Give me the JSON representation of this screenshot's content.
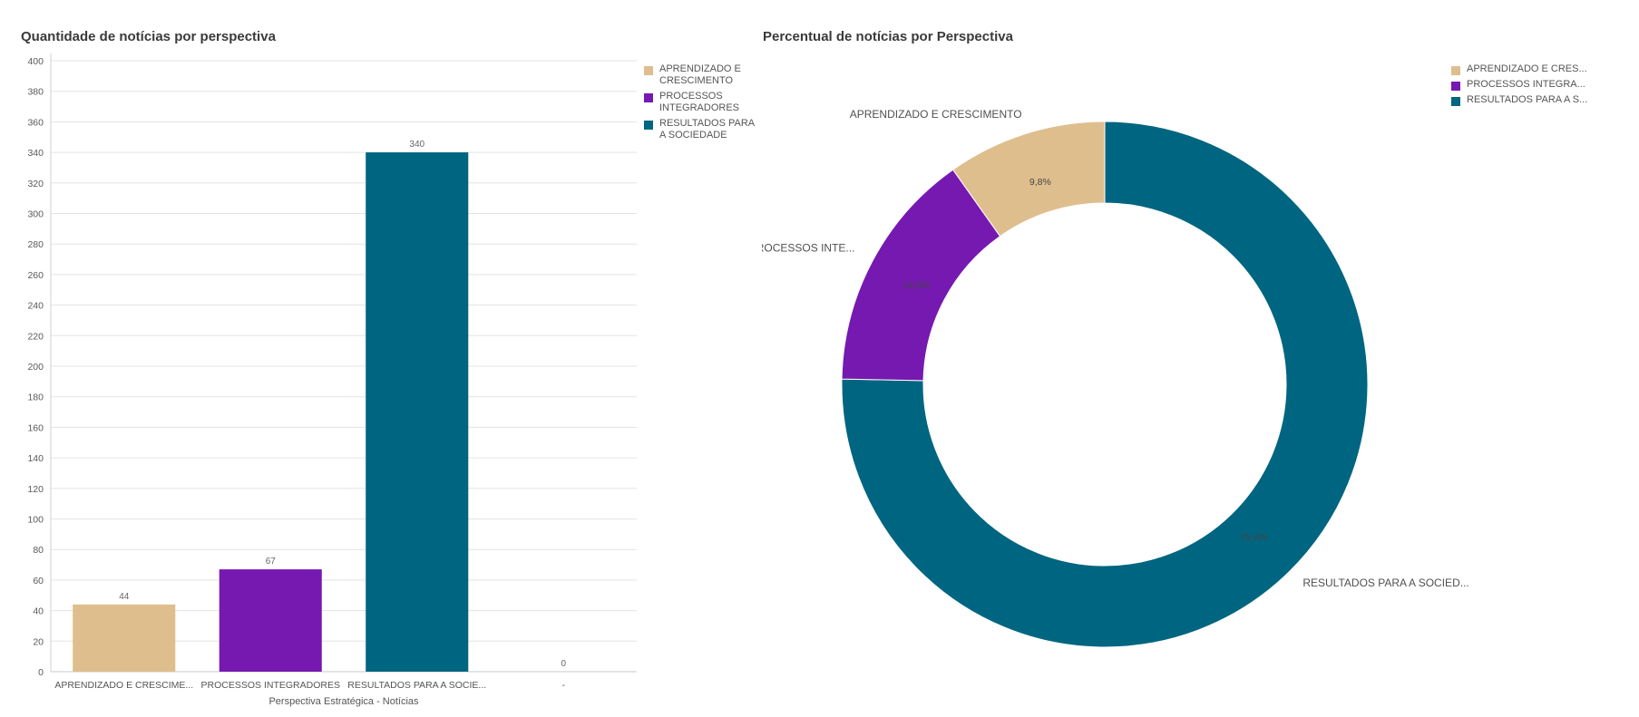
{
  "chart_data": [
    {
      "type": "bar",
      "title": "Quantidade de notícias por perspectiva",
      "xlabel": "Perspectiva Estratégica - Notícias",
      "ylabel": "",
      "ylim": [
        0,
        400
      ],
      "yticks": [
        "0",
        "20",
        "40",
        "60",
        "80",
        "100",
        "120",
        "140",
        "160",
        "180",
        "200",
        "220",
        "240",
        "260",
        "280",
        "300",
        "320",
        "340",
        "360",
        "380",
        "400"
      ],
      "categories": [
        "APRENDIZADO E CRESCIME...",
        "PROCESSOS INTEGRADORES",
        "RESULTADOS PARA A SOCIE...",
        "-"
      ],
      "values": [
        44,
        67,
        340,
        0
      ],
      "value_labels": [
        "44",
        "67",
        "340",
        "0"
      ],
      "colors": [
        "#dfbe8e",
        "#7619b0",
        "#006580",
        "#cccccc"
      ],
      "grid": true,
      "legend_position": "right",
      "legend": [
        {
          "label": "APRENDIZADO E CRESCIMENTO",
          "color": "#dfbe8e"
        },
        {
          "label": "PROCESSOS INTEGRADORES",
          "color": "#7619b0"
        },
        {
          "label": "RESULTADOS PARA A SOCIEDADE",
          "color": "#006580"
        }
      ]
    },
    {
      "type": "pie",
      "title": "Percentual de notícias por Perspectiva",
      "donut": true,
      "labels": [
        "APRENDIZADO E CRESCIMENTO",
        "PROCESSOS INTE...",
        "RESULTADOS PARA A SOCIED..."
      ],
      "values": [
        9.8,
        14.9,
        75.4
      ],
      "percent_labels": [
        "9,8%",
        "14,9%",
        "75,4%"
      ],
      "colors": [
        "#dfbe8e",
        "#7619b0",
        "#006580"
      ],
      "legend_position": "top-right",
      "legend": [
        {
          "label": "APRENDIZADO E CRES...",
          "color": "#dfbe8e"
        },
        {
          "label": "PROCESSOS INTEGRA...",
          "color": "#7619b0"
        },
        {
          "label": "RESULTADOS PARA A S...",
          "color": "#006580"
        }
      ]
    }
  ]
}
